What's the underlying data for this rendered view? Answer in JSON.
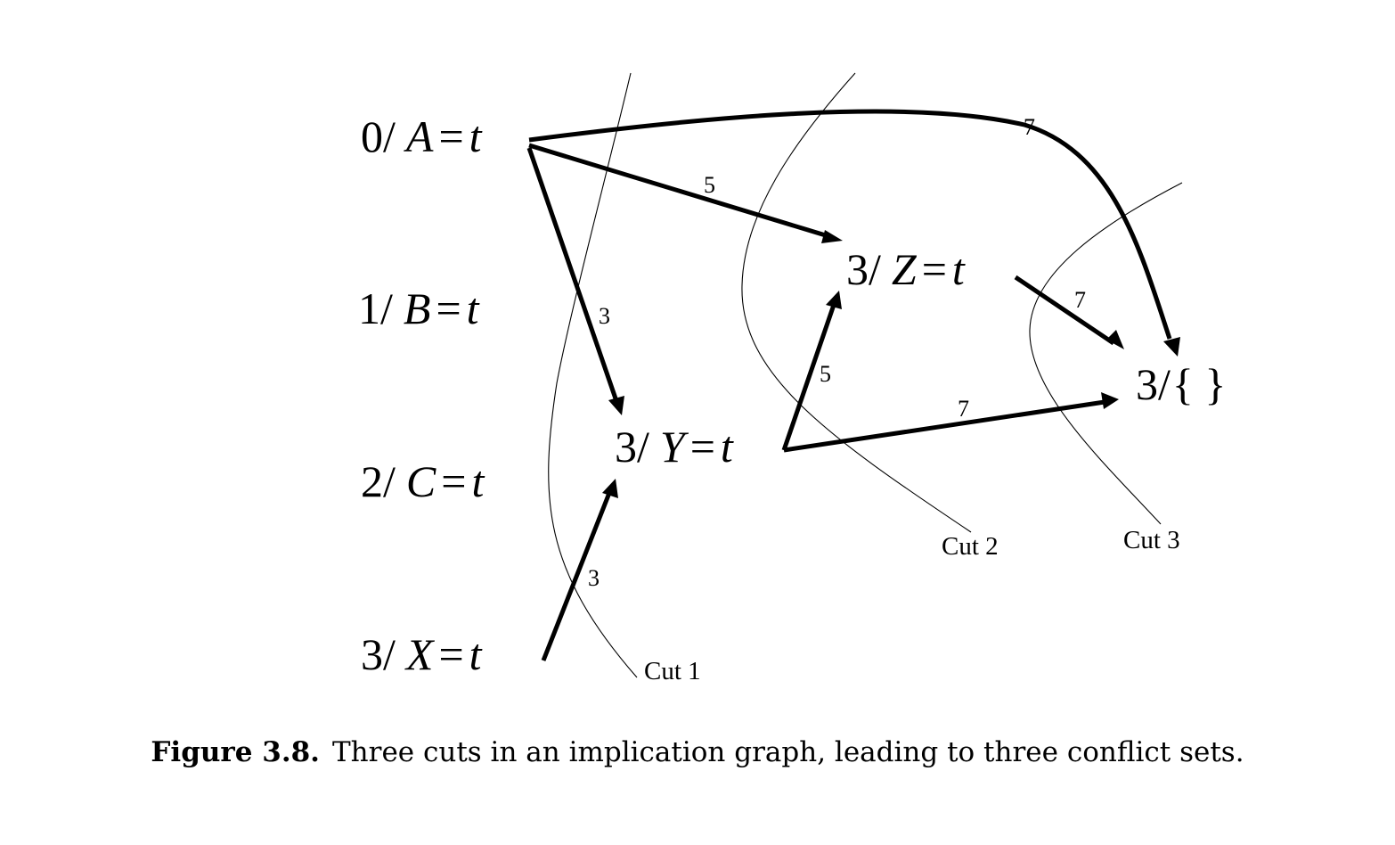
{
  "diagram": {
    "nodes": [
      {
        "id": "a",
        "level": "0",
        "var": "A",
        "value": "t"
      },
      {
        "id": "b",
        "level": "1",
        "var": "B",
        "value": "t"
      },
      {
        "id": "c",
        "level": "2",
        "var": "C",
        "value": "t"
      },
      {
        "id": "x",
        "level": "3",
        "var": "X",
        "value": "t"
      },
      {
        "id": "y",
        "level": "3",
        "var": "Y",
        "value": "t"
      },
      {
        "id": "z",
        "level": "3",
        "var": "Z",
        "value": "t"
      },
      {
        "id": "empty",
        "level": "3",
        "var": "{ }",
        "value": ""
      }
    ],
    "edges": [
      {
        "from": "a",
        "to": "y",
        "label": "3"
      },
      {
        "from": "a",
        "to": "z",
        "label": "5"
      },
      {
        "from": "a",
        "to": "empty",
        "label": "7"
      },
      {
        "from": "x",
        "to": "y",
        "label": "3"
      },
      {
        "from": "y",
        "to": "z",
        "label": "5"
      },
      {
        "from": "y",
        "to": "empty",
        "label": "7"
      },
      {
        "from": "z",
        "to": "empty",
        "label": "7"
      }
    ],
    "cuts": [
      {
        "label": "Cut 1"
      },
      {
        "label": "Cut 2"
      },
      {
        "label": "Cut 3"
      }
    ]
  },
  "caption": {
    "figure_label": "Figure 3.8.",
    "text": "Three cuts in an implication graph, leading to three conflict sets."
  }
}
